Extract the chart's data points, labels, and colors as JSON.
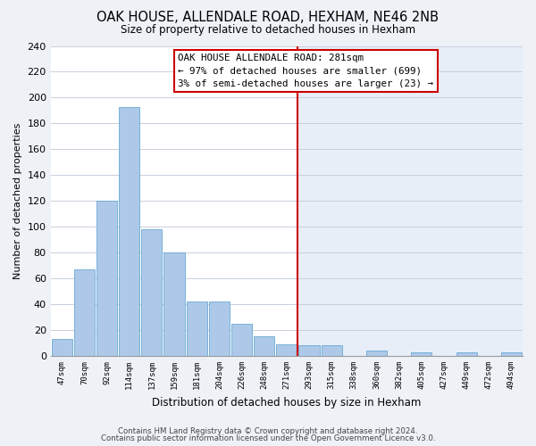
{
  "title": "OAK HOUSE, ALLENDALE ROAD, HEXHAM, NE46 2NB",
  "subtitle": "Size of property relative to detached houses in Hexham",
  "xlabel": "Distribution of detached houses by size in Hexham",
  "ylabel": "Number of detached properties",
  "bin_labels": [
    "47sqm",
    "70sqm",
    "92sqm",
    "114sqm",
    "137sqm",
    "159sqm",
    "181sqm",
    "204sqm",
    "226sqm",
    "248sqm",
    "271sqm",
    "293sqm",
    "315sqm",
    "338sqm",
    "360sqm",
    "382sqm",
    "405sqm",
    "427sqm",
    "449sqm",
    "472sqm",
    "494sqm"
  ],
  "bar_heights": [
    13,
    67,
    120,
    193,
    98,
    80,
    42,
    42,
    25,
    15,
    9,
    8,
    8,
    0,
    4,
    0,
    3,
    0,
    3,
    0,
    3
  ],
  "bar_color": "#adc8e8",
  "bar_edge_color": "#6aaad4",
  "highlight_color": "#d0e4f5",
  "vline_x_index": 10.5,
  "vline_color": "#cc0000",
  "annotation_title": "OAK HOUSE ALLENDALE ROAD: 281sqm",
  "annotation_line1": "← 97% of detached houses are smaller (699)",
  "annotation_line2": "3% of semi-detached houses are larger (23) →",
  "annotation_box_facecolor": "#ffffff",
  "annotation_box_edge": "#cc0000",
  "ylim": [
    0,
    240
  ],
  "yticks": [
    0,
    20,
    40,
    60,
    80,
    100,
    120,
    140,
    160,
    180,
    200,
    220,
    240
  ],
  "footer1": "Contains HM Land Registry data © Crown copyright and database right 2024.",
  "footer2": "Contains public sector information licensed under the Open Government Licence v3.0.",
  "bg_color": "#eef2f7",
  "plot_bg_left": "#ffffff",
  "plot_bg_right": "#e8eef8",
  "grid_color": "#c8d0dc"
}
